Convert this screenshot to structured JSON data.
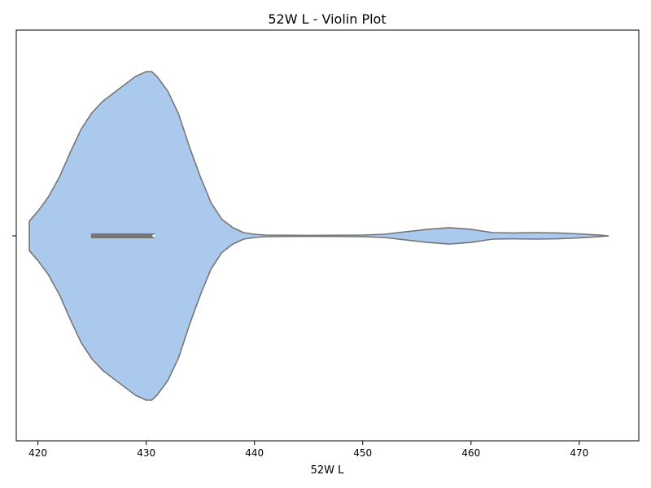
{
  "chart_data": {
    "type": "violin",
    "title": "52W L  - Violin Plot",
    "xlabel": "52W L",
    "ylabel": "",
    "xlim": [
      418,
      475.5
    ],
    "xticks": [
      420,
      430,
      440,
      450,
      460,
      470
    ],
    "range": [
      419.2,
      472.7
    ],
    "box": {
      "q1": 424.9,
      "q3": 430.8,
      "median": 430.7
    },
    "density": [
      [
        419.2,
        0.09
      ],
      [
        420.0,
        0.15
      ],
      [
        421.0,
        0.24
      ],
      [
        422.0,
        0.36
      ],
      [
        423.0,
        0.51
      ],
      [
        424.0,
        0.65
      ],
      [
        425.0,
        0.75
      ],
      [
        426.0,
        0.82
      ],
      [
        427.0,
        0.87
      ],
      [
        428.0,
        0.92
      ],
      [
        429.0,
        0.97
      ],
      [
        430.0,
        1.0
      ],
      [
        430.5,
        1.0
      ],
      [
        431.0,
        0.97
      ],
      [
        432.0,
        0.88
      ],
      [
        433.0,
        0.74
      ],
      [
        434.0,
        0.54
      ],
      [
        435.0,
        0.36
      ],
      [
        436.0,
        0.2
      ],
      [
        437.0,
        0.1
      ],
      [
        438.0,
        0.05
      ],
      [
        439.0,
        0.02
      ],
      [
        440.0,
        0.01
      ],
      [
        441.0,
        0.005
      ],
      [
        445.0,
        0.003
      ],
      [
        450.0,
        0.005
      ],
      [
        452.0,
        0.01
      ],
      [
        454.0,
        0.025
      ],
      [
        456.0,
        0.04
      ],
      [
        458.0,
        0.05
      ],
      [
        460.0,
        0.04
      ],
      [
        462.0,
        0.02
      ],
      [
        464.0,
        0.018
      ],
      [
        466.0,
        0.02
      ],
      [
        468.0,
        0.018
      ],
      [
        470.0,
        0.012
      ],
      [
        472.0,
        0.004
      ],
      [
        472.7,
        0.0
      ]
    ],
    "colors": {
      "fill": "#abc9ed",
      "edge": "#767676",
      "box": "#767676",
      "median": "#ffffff"
    }
  }
}
